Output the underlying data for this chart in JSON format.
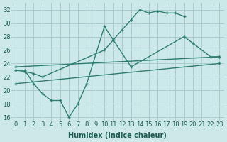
{
  "xlabel": "Humidex (Indice chaleur)",
  "background_color": "#cce8e8",
  "grid_color": "#aacccc",
  "line_color": "#2e7d6e",
  "xlim": [
    -0.5,
    23.5
  ],
  "ylim": [
    15.5,
    33
  ],
  "yticks": [
    16,
    18,
    20,
    22,
    24,
    26,
    28,
    30,
    32
  ],
  "xticks": [
    0,
    1,
    2,
    3,
    4,
    5,
    6,
    7,
    8,
    9,
    10,
    11,
    12,
    13,
    14,
    15,
    16,
    17,
    18,
    19,
    20,
    21,
    22,
    23
  ],
  "line1_x": [
    0,
    1,
    2,
    3,
    4,
    5,
    6,
    7,
    8,
    10,
    13,
    19,
    20,
    22,
    23
  ],
  "line1_y": [
    23.0,
    23.0,
    21.0,
    19.5,
    18.5,
    18.5,
    16.0,
    18.0,
    21.0,
    29.5,
    23.5,
    28.0,
    27.0,
    25.0,
    25.0
  ],
  "line2_x": [
    0,
    1,
    2,
    3,
    10,
    11,
    12,
    13,
    14,
    15,
    16,
    17,
    18,
    19
  ],
  "line2_y": [
    23.0,
    22.8,
    22.5,
    22.0,
    26.0,
    27.5,
    29.0,
    30.5,
    32.0,
    31.5,
    31.8,
    31.5,
    31.5,
    31.0
  ],
  "line3_x": [
    0,
    23
  ],
  "line3_y": [
    23.5,
    25.0
  ],
  "line4_x": [
    0,
    23
  ],
  "line4_y": [
    21.0,
    24.0
  ]
}
